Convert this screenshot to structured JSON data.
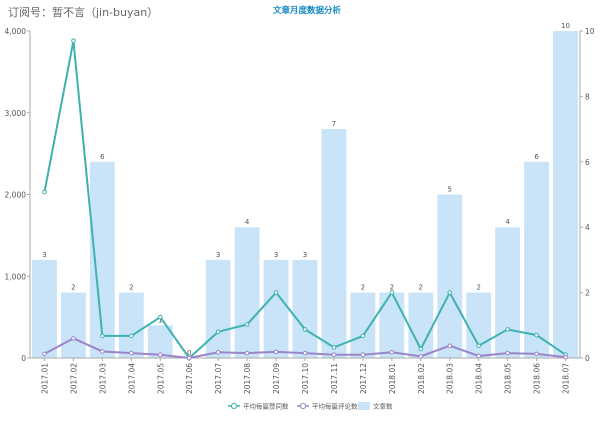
{
  "watermark": "订阅号：暂不言（jin-buyan）",
  "chart_data": {
    "type": "bar",
    "title": "文章月度数据分析",
    "categories": [
      "2017.01",
      "2017.02",
      "2017.03",
      "2017.04",
      "2017.05",
      "2017.06",
      "2017.07",
      "2017.08",
      "2017.09",
      "2017.10",
      "2017.11",
      "2017.12",
      "2018.01",
      "2018.02",
      "2018.03",
      "2018.04",
      "2018.05",
      "2018.06",
      "2018.07"
    ],
    "left_axis": {
      "ylim": [
        0,
        4000
      ],
      "ticks": [
        "0",
        "1,000",
        "2,000",
        "3,000",
        "4,000"
      ]
    },
    "right_axis": {
      "ylim": [
        0,
        10
      ],
      "ticks": [
        "0",
        "2",
        "4",
        "6",
        "8",
        "10"
      ]
    },
    "grid": false,
    "legend_position": "bottom-center",
    "series": [
      {
        "name": "文章数",
        "type": "bar",
        "axis": "right",
        "color": "#c9e4f8",
        "values": [
          3,
          2,
          6,
          2,
          1,
          0,
          3,
          4,
          3,
          3,
          7,
          2,
          2,
          2,
          5,
          2,
          4,
          6,
          10
        ]
      },
      {
        "name": "平均每篇赞同数",
        "type": "line",
        "axis": "left",
        "color": "#3fb2b0",
        "values": [
          2030,
          3880,
          270,
          270,
          500,
          0,
          320,
          410,
          800,
          350,
          130,
          270,
          800,
          110,
          800,
          150,
          350,
          280,
          40
        ]
      },
      {
        "name": "平均每篇评论数",
        "type": "line",
        "axis": "left",
        "color": "#9b84c9",
        "values": [
          50,
          240,
          80,
          60,
          40,
          0,
          70,
          60,
          75,
          60,
          40,
          40,
          70,
          20,
          150,
          25,
          60,
          50,
          10
        ]
      }
    ]
  }
}
